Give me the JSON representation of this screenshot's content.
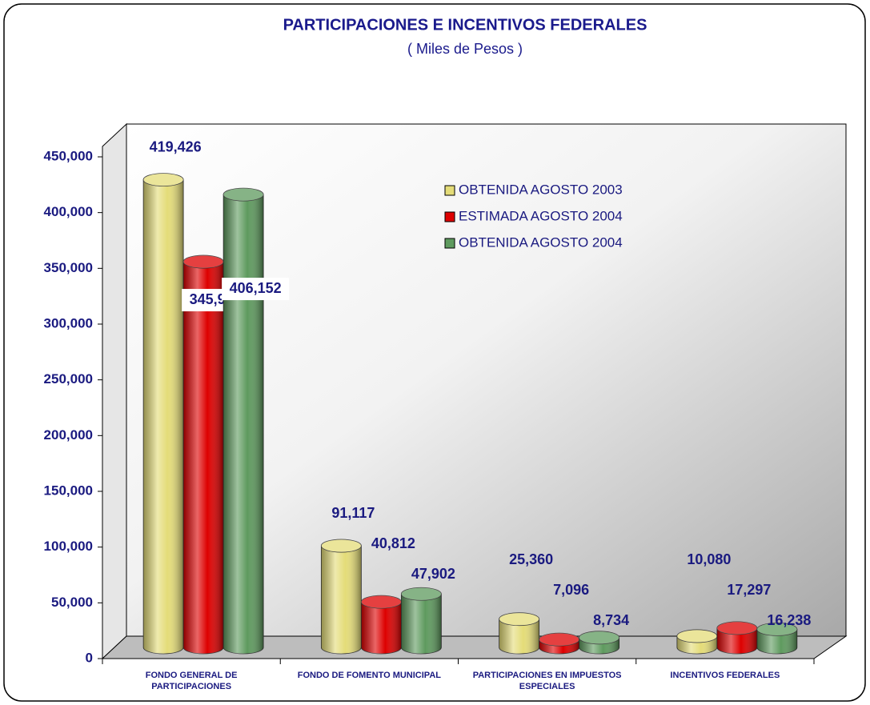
{
  "chart_data": {
    "type": "bar3d",
    "title": "PARTICIPACIONES E INCENTIVOS FEDERALES",
    "subtitle": "( Miles de Pesos )",
    "categories": [
      "FONDO GENERAL DE PARTICIPACIONES",
      "FONDO DE FOMENTO MUNICIPAL",
      "PARTICIPACIONES EN IMPUESTOS ESPECIALES",
      "INCENTIVOS FEDERALES"
    ],
    "series": [
      {
        "name": "OBTENIDA AGOSTO 2003",
        "color": "#e4dc78",
        "values": [
          419426,
          91117,
          25360,
          10080
        ],
        "value_labels": [
          "419,426",
          "91,117",
          "25,360",
          "10,080"
        ]
      },
      {
        "name": "ESTIMADA AGOSTO 2004",
        "color": "#dd0000",
        "values": [
          345900,
          40812,
          7096,
          17297
        ],
        "value_labels": [
          "345,900",
          "40,812",
          "7,096",
          "17,297"
        ]
      },
      {
        "name": "OBTENIDA AGOSTO 2004",
        "color": "#5e9a5e",
        "values": [
          406152,
          47902,
          8734,
          16238
        ],
        "value_labels": [
          "406,152",
          "47,902",
          "8,734",
          "16,238"
        ]
      }
    ],
    "ylim": [
      0,
      450000
    ],
    "yticks": [
      0,
      {
        "value": 50000,
        "label": "50,000"
      },
      {
        "value": 100000,
        "label": "100,000"
      },
      {
        "value": 150000,
        "label": "150,000"
      },
      {
        "value": 200000,
        "label": "200,000"
      },
      {
        "value": 250000,
        "label": "250,000"
      },
      {
        "value": 300000,
        "label": "300,000"
      },
      {
        "value": 350000,
        "label": "350,000"
      },
      {
        "value": 400000,
        "label": "400,000"
      },
      {
        "value": 450000,
        "label": "450,000"
      }
    ],
    "legend": "top-right"
  }
}
